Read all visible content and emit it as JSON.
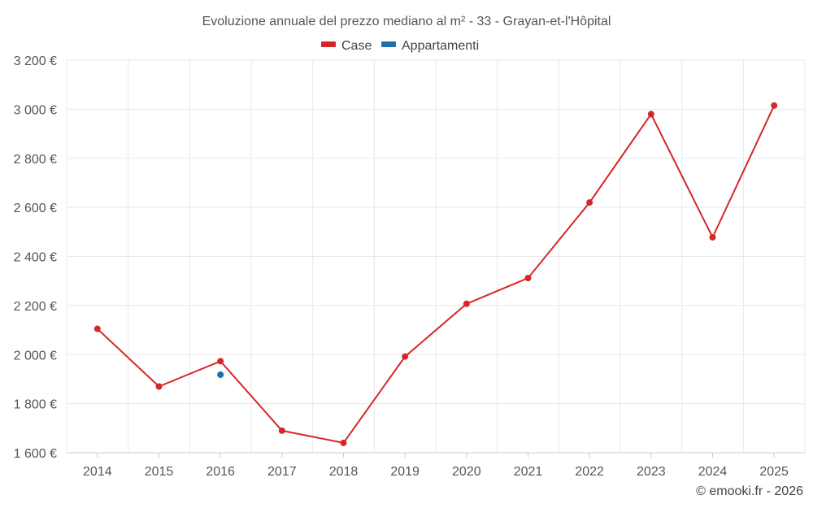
{
  "chart_data": {
    "type": "line",
    "title": "Evoluzione annuale del prezzo mediano al m² - 33 - Grayan-et-l'Hôpital",
    "x": [
      "2014",
      "2015",
      "2016",
      "2017",
      "2018",
      "2019",
      "2020",
      "2021",
      "2022",
      "2023",
      "2024",
      "2025"
    ],
    "ylim": [
      1600,
      3200
    ],
    "yticks": [
      1600,
      1800,
      2000,
      2200,
      2400,
      2600,
      2800,
      3000,
      3200
    ],
    "ytick_labels": [
      "1 600 €",
      "1 800 €",
      "2 000 €",
      "2 200 €",
      "2 400 €",
      "2 600 €",
      "2 800 €",
      "3 000 €",
      "3 200 €"
    ],
    "grid": true,
    "legend_position": "top-center",
    "series": [
      {
        "name": "Case",
        "color": "#d62728",
        "values": [
          2105,
          1870,
          1973,
          1690,
          1640,
          1992,
          2207,
          2312,
          2620,
          2980,
          2478,
          3015
        ]
      },
      {
        "name": "Appartamenti",
        "color": "#1f6fa8",
        "values": [
          null,
          null,
          1918,
          null,
          null,
          null,
          null,
          null,
          null,
          null,
          null,
          null
        ]
      }
    ],
    "credit": "© emooki.fr - 2026"
  }
}
